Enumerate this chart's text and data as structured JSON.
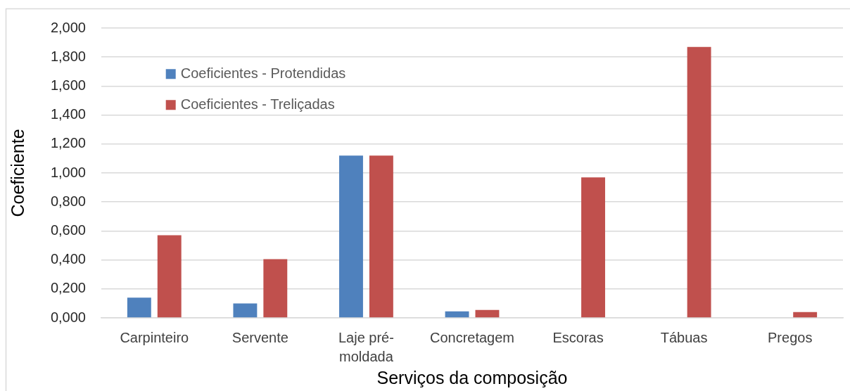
{
  "chart_data": {
    "type": "bar",
    "xlabel": "Serviços da composição",
    "ylabel": "Coeficiente",
    "categories": [
      "Carpinteiro",
      "Servente",
      "Laje pré-moldada",
      "Concretagem",
      "Escoras",
      "Tábuas",
      "Pregos"
    ],
    "series": [
      {
        "name": "Coeficientes - Protendidas",
        "color": "#4f81bd",
        "values": [
          0.14,
          0.1,
          1.12,
          0.045,
          0,
          0,
          0
        ]
      },
      {
        "name": "Coeficientes - Treliçadas",
        "color": "#c0504d",
        "values": [
          0.57,
          0.405,
          1.12,
          0.055,
          0.97,
          1.87,
          0.04
        ]
      }
    ],
    "ylim": [
      0,
      2
    ],
    "yticks": [
      {
        "value": 0,
        "label": "0,000"
      },
      {
        "value": 0.2,
        "label": "0,200"
      },
      {
        "value": 0.4,
        "label": "0,400"
      },
      {
        "value": 0.6,
        "label": "0,600"
      },
      {
        "value": 0.8,
        "label": "0,800"
      },
      {
        "value": 1,
        "label": "1,000"
      },
      {
        "value": 1.2,
        "label": "1,200"
      },
      {
        "value": 1.4,
        "label": "1,400"
      },
      {
        "value": 1.6,
        "label": "1,600"
      },
      {
        "value": 1.8,
        "label": "1,800"
      },
      {
        "value": 2,
        "label": "2,000"
      }
    ],
    "grid": "y",
    "legend": "top left"
  }
}
